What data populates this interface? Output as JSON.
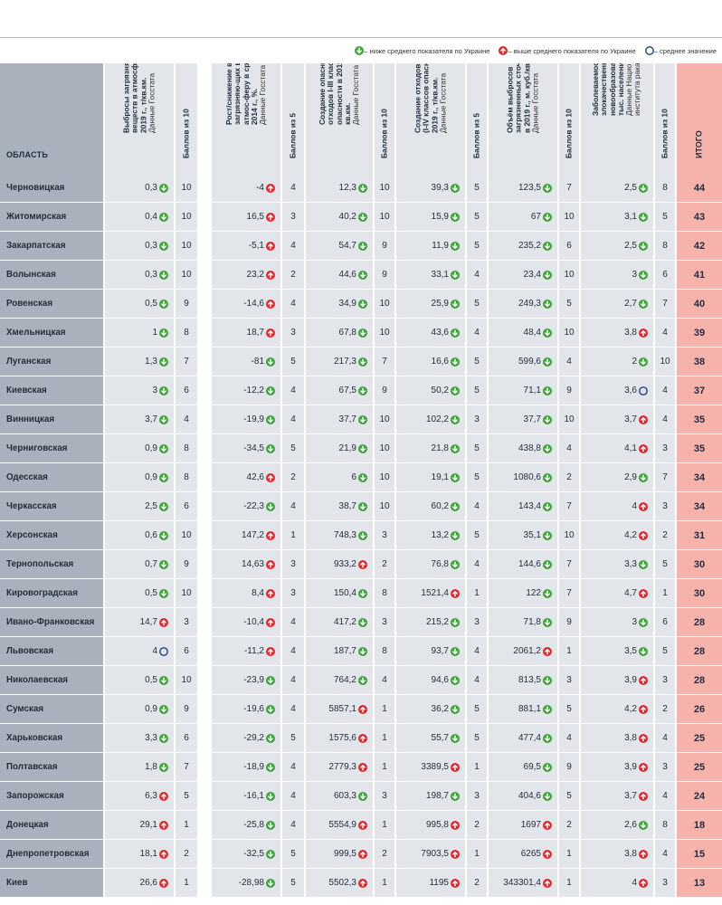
{
  "legend": {
    "below": "– ниже среднего показателя по Украине",
    "above": "– выше среднего показателя по Украине",
    "average": "– среднее значение"
  },
  "colors": {
    "down": "#3aa636",
    "up": "#e3262b",
    "avg": "#1c3f8f"
  },
  "headers": {
    "region": "ОБЛАСТЬ",
    "c1": "Выбросы загрязняющих веществ в атмосферу в 2019 г., т/кв.км.",
    "c1_src": "Данные Госстата",
    "s1": "Баллов из 10",
    "c2": "Рост/снижение вы-бросов загрязняю-щих веществ в атмос-феру в сравнении с 2014 г., %.",
    "c2_src": "Данные Госстата",
    "s2": "Баллов из 5",
    "c3": "Создание опасных отходов I-III классов опасности в 2019 г., кг/кв.км.",
    "c3_src": "Данные Госстата",
    "s3": "Баллов из 10",
    "c4": "Создание отходов в целом (I-IV классов опасности) в 2019 г., т/кв.км.",
    "c4_src": "Данные Госстата",
    "s4": "Баллов из 5",
    "c5": "Объём выбросов загрязненных сточных вод в 2019 г., м. куб./кв. км.",
    "c5_src": "Данные Госстата",
    "s5": "Баллов из 10",
    "c6": "Заболеваемость злокачественными новообразованиями на тыс. населения.",
    "c6_src": "Данные Национального института рака за 2019 г.",
    "s6": "Баллов из 10",
    "total": "ИТОГО"
  },
  "rows": [
    {
      "region": "Черновицкая",
      "v1": "0,3",
      "i1": "down",
      "s1": "10",
      "v2": "-4",
      "i2": "up",
      "s2": "4",
      "v3": "12,3",
      "i3": "down",
      "s3": "10",
      "v4": "39,3",
      "i4": "down",
      "s4": "5",
      "v5": "123,5",
      "i5": "down",
      "s5": "7",
      "v6": "2,5",
      "i6": "down",
      "s6": "8",
      "total": "44"
    },
    {
      "region": "Житомирская",
      "v1": "0,4",
      "i1": "down",
      "s1": "10",
      "v2": "16,5",
      "i2": "up",
      "s2": "3",
      "v3": "40,2",
      "i3": "down",
      "s3": "10",
      "v4": "15,9",
      "i4": "down",
      "s4": "5",
      "v5": "67",
      "i5": "down",
      "s5": "10",
      "v6": "3,1",
      "i6": "down",
      "s6": "5",
      "total": "43"
    },
    {
      "region": "Закарпатская",
      "v1": "0,3",
      "i1": "down",
      "s1": "10",
      "v2": "-5,1",
      "i2": "up",
      "s2": "4",
      "v3": "54,7",
      "i3": "down",
      "s3": "9",
      "v4": "11,9",
      "i4": "down",
      "s4": "5",
      "v5": "235,2",
      "i5": "down",
      "s5": "6",
      "v6": "2,5",
      "i6": "down",
      "s6": "8",
      "total": "42"
    },
    {
      "region": "Волынская",
      "v1": "0,3",
      "i1": "down",
      "s1": "10",
      "v2": "23,2",
      "i2": "up",
      "s2": "2",
      "v3": "44,6",
      "i3": "down",
      "s3": "9",
      "v4": "33,1",
      "i4": "down",
      "s4": "4",
      "v5": "23,4",
      "i5": "down",
      "s5": "10",
      "v6": "3",
      "i6": "down",
      "s6": "6",
      "total": "41"
    },
    {
      "region": "Ровенская",
      "v1": "0,5",
      "i1": "down",
      "s1": "9",
      "v2": "-14,6",
      "i2": "up",
      "s2": "4",
      "v3": "34,9",
      "i3": "down",
      "s3": "10",
      "v4": "25,9",
      "i4": "down",
      "s4": "5",
      "v5": "249,3",
      "i5": "down",
      "s5": "5",
      "v6": "2,7",
      "i6": "down",
      "s6": "7",
      "total": "40"
    },
    {
      "region": "Хмельницкая",
      "v1": "1",
      "i1": "down",
      "s1": "8",
      "v2": "18,7",
      "i2": "up",
      "s2": "3",
      "v3": "67,8",
      "i3": "down",
      "s3": "10",
      "v4": "43,6",
      "i4": "down",
      "s4": "4",
      "v5": "48,4",
      "i5": "down",
      "s5": "10",
      "v6": "3,8",
      "i6": "up",
      "s6": "4",
      "total": "39"
    },
    {
      "region": "Луганская",
      "v1": "1,3",
      "i1": "down",
      "s1": "7",
      "v2": "-81",
      "i2": "down",
      "s2": "5",
      "v3": "217,3",
      "i3": "down",
      "s3": "7",
      "v4": "16,6",
      "i4": "down",
      "s4": "5",
      "v5": "599,6",
      "i5": "down",
      "s5": "4",
      "v6": "2",
      "i6": "down",
      "s6": "10",
      "total": "38"
    },
    {
      "region": "Киевская",
      "v1": "3",
      "i1": "down",
      "s1": "6",
      "v2": "-12,2",
      "i2": "down",
      "s2": "4",
      "v3": "67,5",
      "i3": "down",
      "s3": "9",
      "v4": "50,2",
      "i4": "down",
      "s4": "5",
      "v5": "71,1",
      "i5": "down",
      "s5": "9",
      "v6": "3,6",
      "i6": "avg",
      "s6": "4",
      "total": "37"
    },
    {
      "region": "Винницкая",
      "v1": "3,7",
      "i1": "down",
      "s1": "4",
      "v2": "-19,9",
      "i2": "down",
      "s2": "4",
      "v3": "37,7",
      "i3": "down",
      "s3": "10",
      "v4": "102,2",
      "i4": "down",
      "s4": "3",
      "v5": "37,7",
      "i5": "down",
      "s5": "10",
      "v6": "3,7",
      "i6": "up",
      "s6": "4",
      "total": "35"
    },
    {
      "region": "Черниговская",
      "v1": "0,9",
      "i1": "down",
      "s1": "8",
      "v2": "-34,5",
      "i2": "down",
      "s2": "5",
      "v3": "21,9",
      "i3": "down",
      "s3": "10",
      "v4": "21,8",
      "i4": "down",
      "s4": "5",
      "v5": "438,8",
      "i5": "down",
      "s5": "4",
      "v6": "4,1",
      "i6": "up",
      "s6": "3",
      "total": "35"
    },
    {
      "region": "Одесская",
      "v1": "0,9",
      "i1": "down",
      "s1": "8",
      "v2": "42,6",
      "i2": "up",
      "s2": "2",
      "v3": "6",
      "i3": "down",
      "s3": "10",
      "v4": "19,1",
      "i4": "down",
      "s4": "5",
      "v5": "1080,6",
      "i5": "down",
      "s5": "2",
      "v6": "2,9",
      "i6": "down",
      "s6": "7",
      "total": "34"
    },
    {
      "region": "Черкасская",
      "v1": "2,5",
      "i1": "down",
      "s1": "6",
      "v2": "-22,3",
      "i2": "down",
      "s2": "4",
      "v3": "38,7",
      "i3": "down",
      "s3": "10",
      "v4": "60,2",
      "i4": "down",
      "s4": "4",
      "v5": "143,4",
      "i5": "down",
      "s5": "7",
      "v6": "4",
      "i6": "up",
      "s6": "3",
      "total": "34"
    },
    {
      "region": "Херсонская",
      "v1": "0,6",
      "i1": "down",
      "s1": "10",
      "v2": "147,2",
      "i2": "up",
      "s2": "1",
      "v3": "748,3",
      "i3": "down",
      "s3": "3",
      "v4": "13,2",
      "i4": "down",
      "s4": "5",
      "v5": "35,1",
      "i5": "down",
      "s5": "10",
      "v6": "4,2",
      "i6": "up",
      "s6": "2",
      "total": "31"
    },
    {
      "region": "Тернопольская",
      "v1": "0,7",
      "i1": "down",
      "s1": "9",
      "v2": "14,63",
      "i2": "up",
      "s2": "3",
      "v3": "933,2",
      "i3": "up",
      "s3": "2",
      "v4": "76,8",
      "i4": "down",
      "s4": "4",
      "v5": "144,6",
      "i5": "down",
      "s5": "7",
      "v6": "3,3",
      "i6": "down",
      "s6": "5",
      "total": "30"
    },
    {
      "region": "Кировоградская",
      "v1": "0,5",
      "i1": "down",
      "s1": "10",
      "v2": "8,4",
      "i2": "up",
      "s2": "3",
      "v3": "150,4",
      "i3": "down",
      "s3": "8",
      "v4": "1521,4",
      "i4": "up",
      "s4": "1",
      "v5": "122",
      "i5": "down",
      "s5": "7",
      "v6": "4,7",
      "i6": "up",
      "s6": "1",
      "total": "30"
    },
    {
      "region": "Ивано-Франковская",
      "v1": "14,7",
      "i1": "up",
      "s1": "3",
      "v2": "-10,4",
      "i2": "up",
      "s2": "4",
      "v3": "417,2",
      "i3": "down",
      "s3": "3",
      "v4": "215,2",
      "i4": "down",
      "s4": "3",
      "v5": "71,8",
      "i5": "down",
      "s5": "9",
      "v6": "3",
      "i6": "down",
      "s6": "6",
      "total": "28"
    },
    {
      "region": "Львовская",
      "v1": "4",
      "i1": "avg",
      "s1": "6",
      "v2": "-11,2",
      "i2": "up",
      "s2": "4",
      "v3": "187,7",
      "i3": "down",
      "s3": "8",
      "v4": "93,7",
      "i4": "down",
      "s4": "4",
      "v5": "2061,2",
      "i5": "up",
      "s5": "1",
      "v6": "3,5",
      "i6": "down",
      "s6": "5",
      "total": "28"
    },
    {
      "region": "Николаевская",
      "v1": "0,5",
      "i1": "down",
      "s1": "10",
      "v2": "-23,9",
      "i2": "down",
      "s2": "4",
      "v3": "764,2",
      "i3": "down",
      "s3": "4",
      "v4": "94,6",
      "i4": "down",
      "s4": "4",
      "v5": "813,5",
      "i5": "down",
      "s5": "3",
      "v6": "3,9",
      "i6": "up",
      "s6": "3",
      "total": "28"
    },
    {
      "region": "Сумская",
      "v1": "0,9",
      "i1": "down",
      "s1": "9",
      "v2": "-19,6",
      "i2": "down",
      "s2": "4",
      "v3": "5857,1",
      "i3": "up",
      "s3": "1",
      "v4": "36,2",
      "i4": "down",
      "s4": "5",
      "v5": "881,1",
      "i5": "down",
      "s5": "5",
      "v6": "4,2",
      "i6": "up",
      "s6": "2",
      "total": "26"
    },
    {
      "region": "Харьковская",
      "v1": "3,3",
      "i1": "down",
      "s1": "6",
      "v2": "-29,2",
      "i2": "down",
      "s2": "5",
      "v3": "1575,6",
      "i3": "up",
      "s3": "1",
      "v4": "55,7",
      "i4": "down",
      "s4": "5",
      "v5": "477,4",
      "i5": "down",
      "s5": "4",
      "v6": "3,8",
      "i6": "up",
      "s6": "4",
      "total": "25"
    },
    {
      "region": "Полтавская",
      "v1": "1,8",
      "i1": "down",
      "s1": "7",
      "v2": "-18,9",
      "i2": "down",
      "s2": "4",
      "v3": "2779,3",
      "i3": "up",
      "s3": "1",
      "v4": "3389,5",
      "i4": "up",
      "s4": "1",
      "v5": "69,5",
      "i5": "down",
      "s5": "9",
      "v6": "3,9",
      "i6": "up",
      "s6": "3",
      "total": "25"
    },
    {
      "region": "Запорожская",
      "v1": "6,3",
      "i1": "up",
      "s1": "5",
      "v2": "-16,1",
      "i2": "down",
      "s2": "4",
      "v3": "603,3",
      "i3": "down",
      "s3": "3",
      "v4": "198,7",
      "i4": "down",
      "s4": "3",
      "v5": "404,6",
      "i5": "down",
      "s5": "5",
      "v6": "3,7",
      "i6": "up",
      "s6": "4",
      "total": "24"
    },
    {
      "region": "Донецкая",
      "v1": "29,1",
      "i1": "up",
      "s1": "1",
      "v2": "-25,8",
      "i2": "down",
      "s2": "4",
      "v3": "5554,9",
      "i3": "up",
      "s3": "1",
      "v4": "995,8",
      "i4": "up",
      "s4": "2",
      "v5": "1697",
      "i5": "up",
      "s5": "2",
      "v6": "2,6",
      "i6": "down",
      "s6": "8",
      "total": "18"
    },
    {
      "region": "Днепропетровская",
      "v1": "18,1",
      "i1": "up",
      "s1": "2",
      "v2": "-32,5",
      "i2": "down",
      "s2": "5",
      "v3": "999,5",
      "i3": "up",
      "s3": "2",
      "v4": "7903,5",
      "i4": "up",
      "s4": "1",
      "v5": "6265",
      "i5": "up",
      "s5": "1",
      "v6": "3,8",
      "i6": "up",
      "s6": "4",
      "total": "15"
    },
    {
      "region": "Киев",
      "v1": "26,6",
      "i1": "up",
      "s1": "1",
      "v2": "-28,98",
      "i2": "down",
      "s2": "5",
      "v3": "5502,3",
      "i3": "up",
      "s3": "1",
      "v4": "1195",
      "i4": "up",
      "s4": "2",
      "v5": "343301,4",
      "i5": "up",
      "s5": "1",
      "v6": "4",
      "i6": "up",
      "s6": "3",
      "total": "13"
    }
  ]
}
